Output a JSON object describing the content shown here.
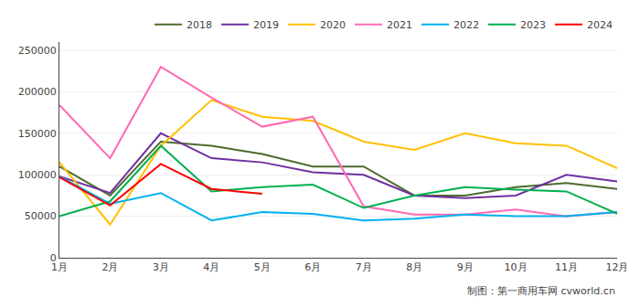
{
  "chart_data": {
    "type": "line",
    "categories": [
      "1月",
      "2月",
      "3月",
      "4月",
      "5月",
      "6月",
      "7月",
      "8月",
      "9月",
      "10月",
      "11月",
      "12月"
    ],
    "series": [
      {
        "name": "2018",
        "color": "#4d6b2e",
        "values": [
          110000,
          75000,
          140000,
          135000,
          125000,
          110000,
          110000,
          75000,
          75000,
          85000,
          90000,
          83000
        ]
      },
      {
        "name": "2019",
        "color": "#7030a0",
        "values": [
          98000,
          78000,
          150000,
          120000,
          115000,
          103000,
          100000,
          75000,
          72000,
          75000,
          100000,
          92000
        ]
      },
      {
        "name": "2020",
        "color": "#ffc000",
        "values": [
          115000,
          40000,
          135000,
          190000,
          170000,
          165000,
          140000,
          130000,
          150000,
          138000,
          135000,
          108000
        ]
      },
      {
        "name": "2021",
        "color": "#ff69b4",
        "values": [
          184000,
          120000,
          230000,
          193000,
          158000,
          170000,
          62000,
          52000,
          52000,
          58000,
          50000,
          55000
        ]
      },
      {
        "name": "2022",
        "color": "#00b0f0",
        "values": [
          98000,
          65000,
          78000,
          45000,
          55000,
          53000,
          45000,
          47000,
          52000,
          50000,
          50000,
          55000
        ]
      },
      {
        "name": "2023",
        "color": "#00b050",
        "values": [
          50000,
          68000,
          135000,
          80000,
          85000,
          88000,
          60000,
          75000,
          85000,
          82000,
          80000,
          53000
        ]
      },
      {
        "name": "2024",
        "color": "#ff0000",
        "values": [
          97000,
          63000,
          113000,
          83000,
          77000,
          null,
          null,
          null,
          null,
          null,
          null,
          null
        ]
      }
    ],
    "ylim": [
      0,
      260000
    ],
    "yticks": [
      0,
      50000,
      100000,
      150000,
      200000,
      250000
    ],
    "grid": true,
    "legend": "upper right",
    "annotations": [
      "制图：第一商用车网 cvworld.cn"
    ]
  }
}
